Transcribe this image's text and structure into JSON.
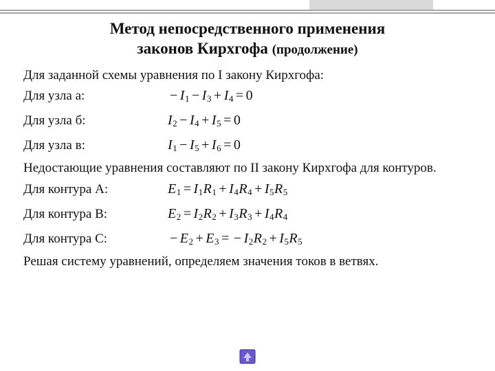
{
  "colors": {
    "background": "#ffffff",
    "text": "#111111",
    "rule": "#a6a6a6",
    "accent": "#d9d9d9",
    "nav_box": "#6a5acd",
    "nav_border": "#3b2f7a"
  },
  "title_line1": "Метод непосредственного применения",
  "title_line2": "законов Кирхгофа ",
  "title_suffix": "(продолжение)",
  "intro": "Для заданной схемы уравнения по I закону Кирхгофа:",
  "node_rows": [
    {
      "label": "Для узла а:",
      "eq_html": "<span class='op'>−</span>I<sub>1</sub><span class='op'>−</span>I<sub>3</sub><span class='op'>+</span>I<sub>4</sub><span class='op'>=</span><span class='num'>0</span>"
    },
    {
      "label": "Для узла б:",
      "eq_html": "I<sub>2</sub><span class='op'>−</span>I<sub>4</sub><span class='op'>+</span>I<sub>5</sub><span class='op'>=</span><span class='num'>0</span>"
    },
    {
      "label": "Для узла в:",
      "eq_html": "I<sub>1</sub><span class='op'>−</span>I<sub>5</sub><span class='op'>+</span>I<sub>6</sub><span class='op'>=</span><span class='num'>0</span>"
    }
  ],
  "mid1": "Недостающие уравнения составляют по II закону Кирхгофа для контуров.",
  "loop_rows": [
    {
      "label": "Для контура A:",
      "eq_html": "E<sub>1</sub><span class='op'>=</span>I<sub>1</sub>R<sub>1</sub><span class='op'>+</span>I<sub>4</sub>R<sub>4</sub><span class='op'>+</span>I<sub>5</sub>R<sub>5</sub>"
    },
    {
      "label": "Для контура B:",
      "eq_html": "E<sub>2</sub><span class='op'>=</span>I<sub>2</sub>R<sub>2</sub><span class='op'>+</span>I<sub>3</sub>R<sub>3</sub><span class='op'>+</span>I<sub>4</sub>R<sub>4</sub>"
    },
    {
      "label": "Для контура C:",
      "eq_html": "<span class='op'>−</span>E<sub>2</sub><span class='op'>+</span>E<sub>3</sub><span class='op'>=</span><span class='op'>−</span>I<sub>2</sub>R<sub>2</sub><span class='op'>+</span>I<sub>5</sub>R<sub>5</sub>"
    }
  ],
  "conclusion": "Решая систему уравнений, определяем  значения токов в ветвях."
}
